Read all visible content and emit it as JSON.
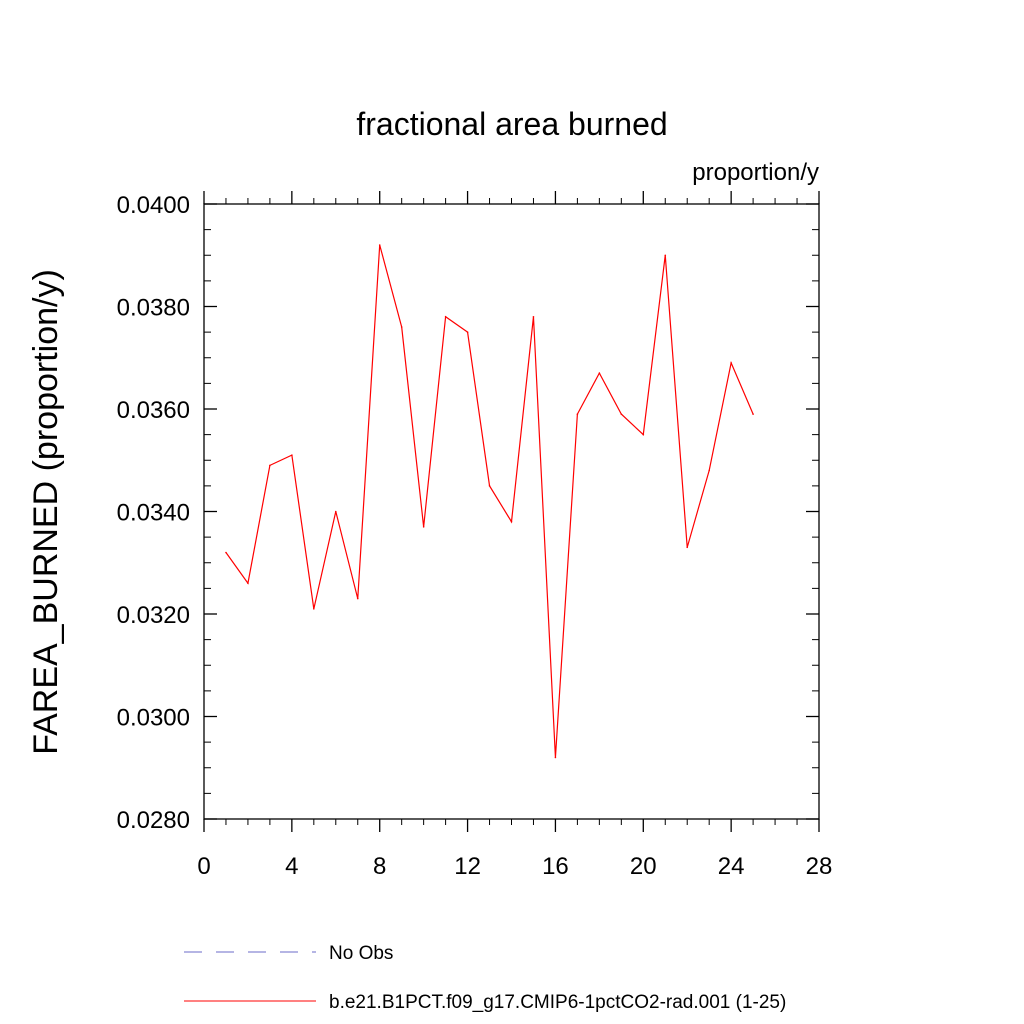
{
  "chart_data": {
    "type": "line",
    "title": "fractional area burned",
    "units_label": "proportion/y",
    "xlabel": "",
    "ylabel": "FAREA_BURNED  (proportion/y)",
    "xlim": [
      0,
      28
    ],
    "ylim": [
      0.028,
      0.04
    ],
    "x_ticks": [
      0,
      4,
      8,
      12,
      16,
      20,
      24,
      28
    ],
    "x_tick_labels": [
      "0",
      "4",
      "8",
      "12",
      "16",
      "20",
      "24",
      "28"
    ],
    "y_ticks": [
      0.028,
      0.03,
      0.032,
      0.034,
      0.036,
      0.038,
      0.04
    ],
    "y_tick_labels": [
      "0.0280",
      "0.0300",
      "0.0320",
      "0.0340",
      "0.0360",
      "0.0380",
      "0.0400"
    ],
    "grid": false,
    "legend_position": "bottom",
    "series": [
      {
        "name": "No Obs",
        "color": "#6b6bc8",
        "dashed": true,
        "x": [],
        "values": []
      },
      {
        "name": "b.e21.B1PCT.f09_g17.CMIP6-1pctCO2-rad.001 (1-25)",
        "color": "#ff0000",
        "dashed": false,
        "x": [
          1,
          2,
          3,
          4,
          5,
          6,
          7,
          8,
          9,
          10,
          11,
          12,
          13,
          14,
          15,
          16,
          17,
          18,
          19,
          20,
          21,
          22,
          23,
          24,
          25
        ],
        "values": [
          0.0332,
          0.0326,
          0.0349,
          0.0351,
          0.0321,
          0.034,
          0.0323,
          0.0392,
          0.0376,
          0.0337,
          0.0378,
          0.0375,
          0.0345,
          0.0338,
          0.0378,
          0.0292,
          0.0359,
          0.0367,
          0.0359,
          0.0355,
          0.039,
          0.0333,
          0.0348,
          0.0369,
          0.0359
        ]
      }
    ]
  }
}
